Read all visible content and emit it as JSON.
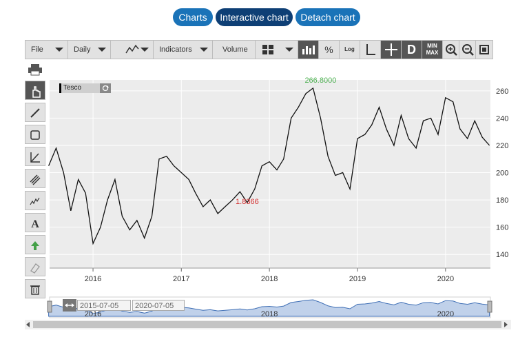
{
  "tabs": [
    "Charts",
    "Interactive chart",
    "Detach chart"
  ],
  "toolbar": {
    "file": "File",
    "interval": "Daily",
    "indicators": "Indicators",
    "volume": "Volume",
    "percent": "%",
    "log": "Log",
    "d": "D",
    "min": "MIN",
    "max": "MAX"
  },
  "legend": {
    "symbol": "Tesco"
  },
  "navigator": {
    "start_date": "2015-07-05",
    "end_date": "2020-07-05",
    "years": [
      "2016",
      "2018",
      "2020"
    ]
  },
  "chart_data": {
    "type": "line",
    "series": [
      {
        "name": "Tesco",
        "color": "#111111",
        "x": [
          "2015-07",
          "2015-08",
          "2015-09",
          "2015-10",
          "2015-11",
          "2015-12",
          "2016-01",
          "2016-02",
          "2016-03",
          "2016-04",
          "2016-05",
          "2016-06",
          "2016-07",
          "2016-08",
          "2016-09",
          "2016-10",
          "2016-11",
          "2016-12",
          "2017-01",
          "2017-02",
          "2017-03",
          "2017-04",
          "2017-05",
          "2017-06",
          "2017-07",
          "2017-08",
          "2017-09",
          "2017-10",
          "2017-11",
          "2017-12",
          "2018-01",
          "2018-02",
          "2018-03",
          "2018-04",
          "2018-05",
          "2018-06",
          "2018-07",
          "2018-08",
          "2018-09",
          "2018-10",
          "2018-11",
          "2018-12",
          "2019-01",
          "2019-02",
          "2019-03",
          "2019-04",
          "2019-05",
          "2019-06",
          "2019-07",
          "2019-08",
          "2019-09",
          "2019-10",
          "2019-11",
          "2019-12",
          "2020-01",
          "2020-02",
          "2020-03",
          "2020-04",
          "2020-05",
          "2020-06",
          "2020-07"
        ],
        "values": [
          205,
          218,
          200,
          172,
          195,
          185,
          148,
          160,
          180,
          195,
          168,
          158,
          165,
          152,
          168,
          210,
          212,
          205,
          200,
          195,
          185,
          175,
          180,
          170,
          175,
          180,
          186,
          178,
          188,
          205,
          208,
          202,
          210,
          240,
          248,
          258,
          262,
          240,
          212,
          198,
          200,
          188,
          225,
          228,
          235,
          248,
          232,
          220,
          242,
          225,
          218,
          238,
          240,
          228,
          255,
          252,
          232,
          225,
          238,
          226,
          220
        ]
      }
    ],
    "x_tick_labels": [
      "2016",
      "2017",
      "2018",
      "2019",
      "2020"
    ],
    "y_tick_labels": [
      "140",
      "160",
      "180",
      "200",
      "220",
      "240",
      "260"
    ],
    "ylim": [
      130,
      268
    ],
    "annotations": [
      {
        "text": "266.8000",
        "x": "2018-08",
        "y": 264,
        "color": "#4caf50"
      },
      {
        "text": "1.8366",
        "x": "2017-10",
        "y": 175,
        "color": "#d32f2f"
      }
    ],
    "grid": true
  }
}
